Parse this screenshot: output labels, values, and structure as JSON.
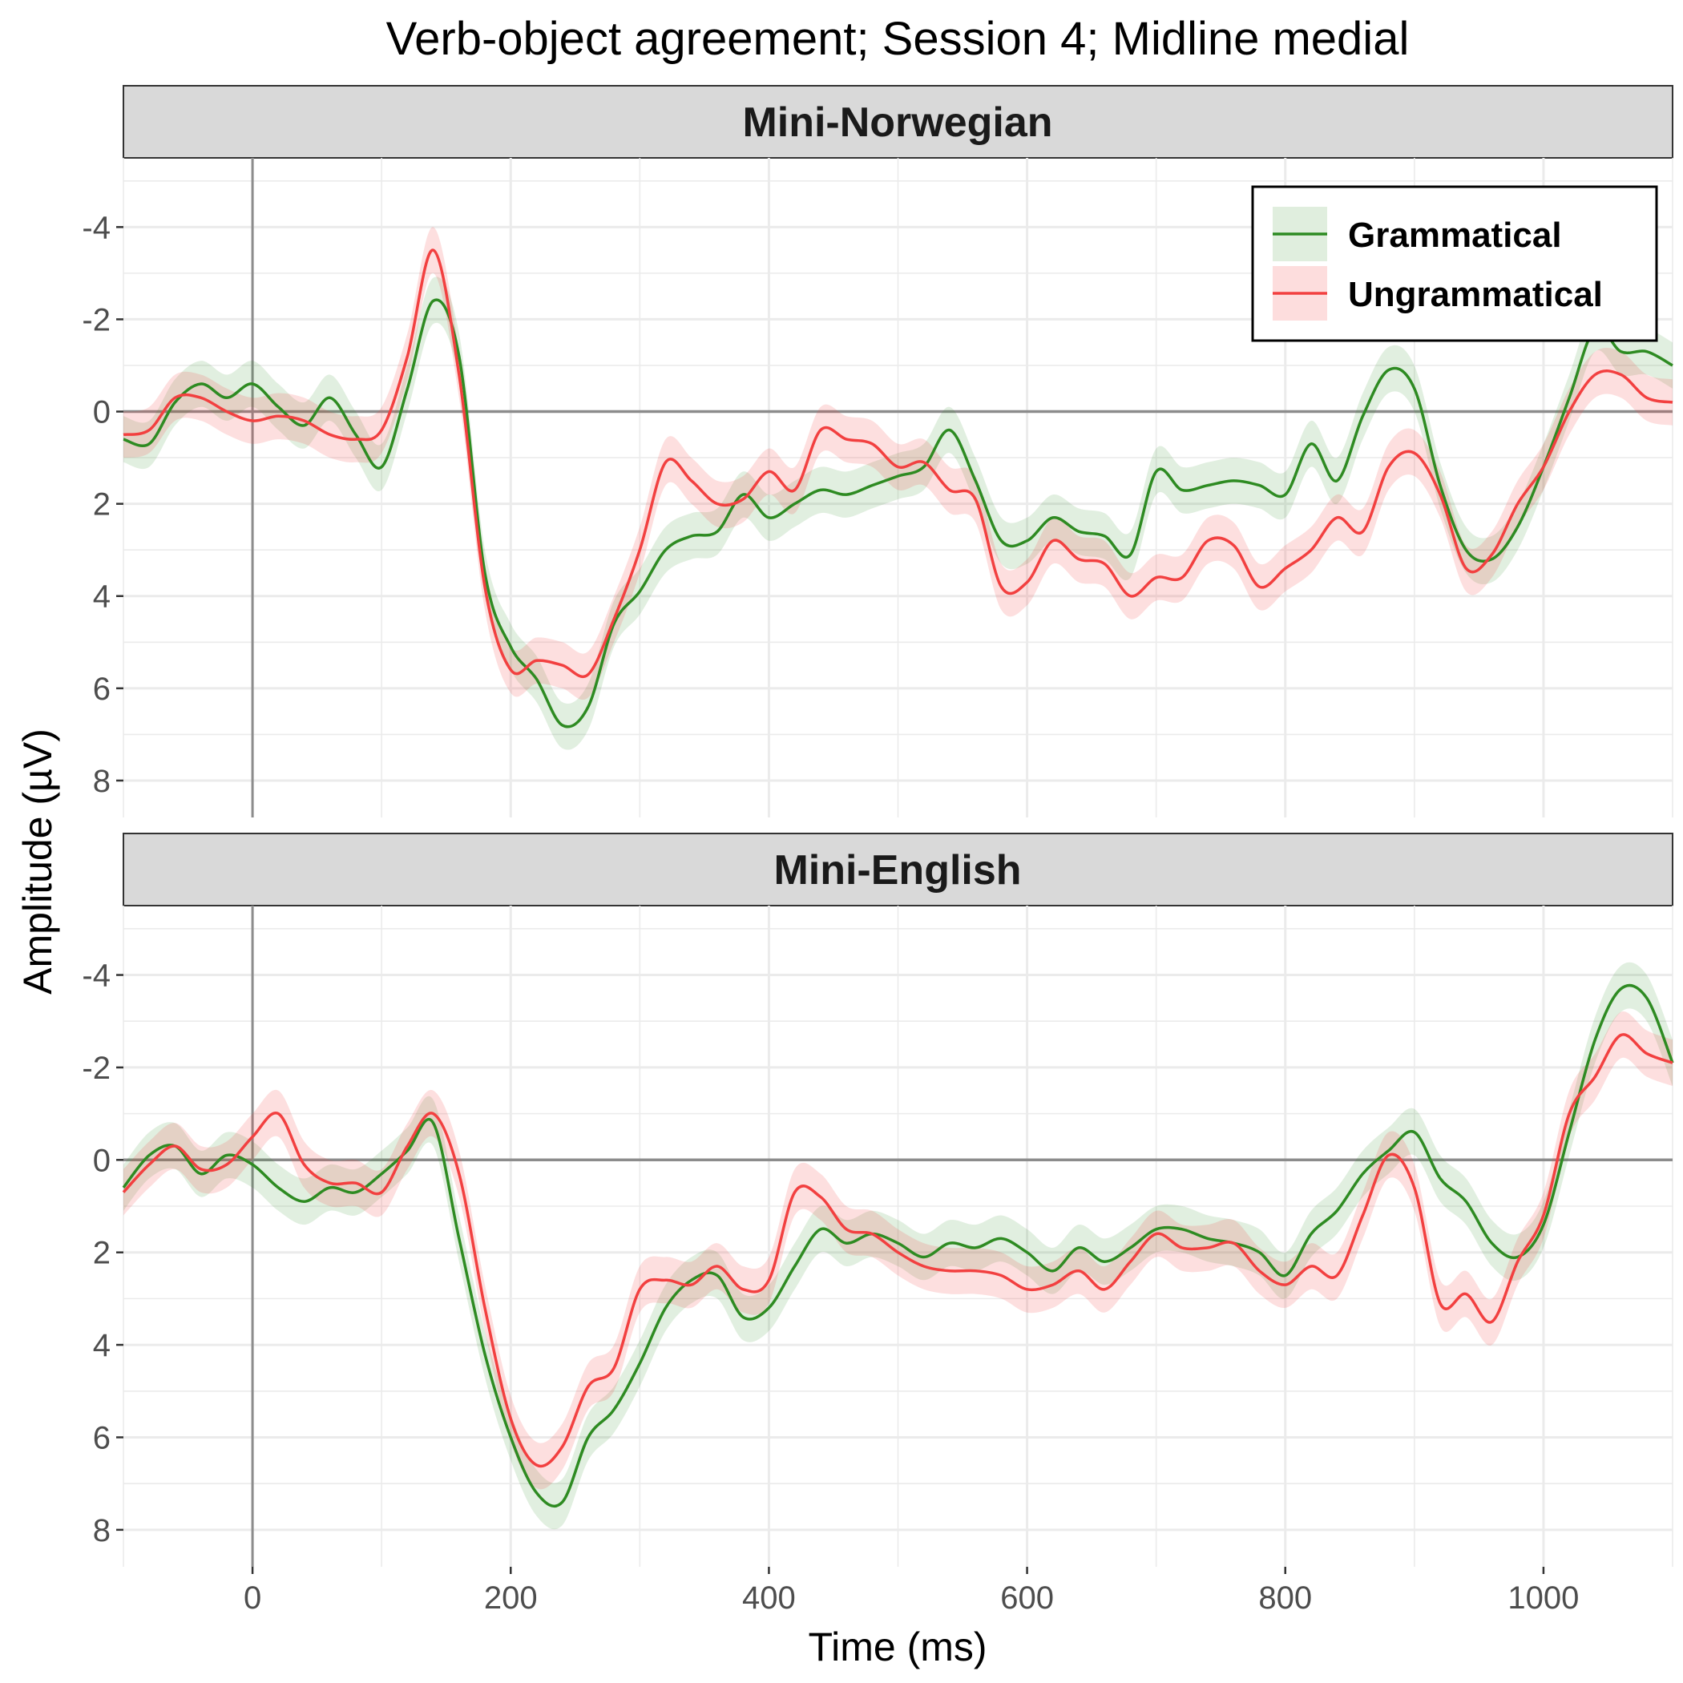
{
  "chart_data": {
    "type": "line",
    "title": "Verb-object agreement; Session 4; Midline medial",
    "xlabel": "Time (ms)",
    "ylabel": "Amplitude (µV)",
    "xlim": [
      -100,
      1100
    ],
    "ylim": [
      -5.5,
      8.8
    ],
    "y_reversed": true,
    "xticks": [
      0,
      200,
      400,
      600,
      800,
      1000
    ],
    "yticks": [
      -4,
      -2,
      0,
      2,
      4,
      6,
      8
    ],
    "ytick_labels": [
      "-4",
      "-2",
      "0",
      "2",
      "4",
      "6",
      "8"
    ],
    "grid": true,
    "legend_position": "top-right",
    "legend": [
      {
        "label": "Grammatical",
        "color": "#2e8b22"
      },
      {
        "label": "Ungrammatical",
        "color": "#f24040"
      }
    ],
    "x": [
      -100,
      -80,
      -60,
      -40,
      -20,
      0,
      20,
      40,
      60,
      80,
      100,
      120,
      140,
      160,
      180,
      200,
      220,
      240,
      260,
      280,
      300,
      320,
      340,
      360,
      380,
      400,
      420,
      440,
      460,
      480,
      500,
      520,
      540,
      560,
      580,
      600,
      620,
      640,
      660,
      680,
      700,
      720,
      740,
      760,
      780,
      800,
      820,
      840,
      860,
      880,
      900,
      920,
      940,
      960,
      980,
      1000,
      1020,
      1040,
      1060,
      1080,
      1100
    ],
    "panels": [
      {
        "label": "Mini-Norwegian",
        "series": [
          {
            "name": "Grammatical",
            "color": "#2e8b22",
            "ci": 0.5,
            "values": [
              0.6,
              0.7,
              -0.2,
              -0.6,
              -0.3,
              -0.6,
              -0.1,
              0.3,
              -0.3,
              0.5,
              1.2,
              -0.5,
              -2.4,
              -1.2,
              3.5,
              5.1,
              5.8,
              6.8,
              6.4,
              4.6,
              3.9,
              3.0,
              2.7,
              2.6,
              1.8,
              2.3,
              2.0,
              1.7,
              1.8,
              1.6,
              1.4,
              1.2,
              0.4,
              1.5,
              2.8,
              2.8,
              2.3,
              2.6,
              2.7,
              3.1,
              1.3,
              1.7,
              1.6,
              1.5,
              1.6,
              1.8,
              0.7,
              1.5,
              0.1,
              -0.9,
              -0.5,
              1.6,
              3.0,
              3.2,
              2.5,
              1.2,
              -0.3,
              -1.8,
              -1.3,
              -1.3,
              -1.0
            ]
          },
          {
            "name": "Ungrammatical",
            "color": "#f24040",
            "ci": 0.5,
            "values": [
              0.5,
              0.4,
              -0.3,
              -0.3,
              0.0,
              0.2,
              0.1,
              0.2,
              0.5,
              0.6,
              0.4,
              -1.2,
              -3.5,
              -0.8,
              3.8,
              5.6,
              5.4,
              5.5,
              5.7,
              4.5,
              3.0,
              1.1,
              1.5,
              2.0,
              1.9,
              1.3,
              1.7,
              0.4,
              0.6,
              0.7,
              1.2,
              1.1,
              1.7,
              1.9,
              3.8,
              3.7,
              2.8,
              3.2,
              3.3,
              4.0,
              3.6,
              3.6,
              2.8,
              2.9,
              3.8,
              3.4,
              3.0,
              2.3,
              2.6,
              1.2,
              0.9,
              1.8,
              3.4,
              3.1,
              2.0,
              1.2,
              0.0,
              -0.8,
              -0.8,
              -0.3,
              -0.2
            ]
          }
        ]
      },
      {
        "label": "Mini-English",
        "series": [
          {
            "name": "Grammatical",
            "color": "#2e8b22",
            "ci": 0.5,
            "values": [
              0.6,
              -0.1,
              -0.3,
              0.3,
              -0.1,
              0.1,
              0.6,
              0.9,
              0.6,
              0.7,
              0.3,
              -0.2,
              -0.8,
              1.7,
              4.2,
              6.0,
              7.2,
              7.4,
              6.0,
              5.4,
              4.4,
              3.2,
              2.6,
              2.5,
              3.4,
              3.2,
              2.3,
              1.5,
              1.8,
              1.6,
              1.8,
              2.1,
              1.8,
              1.9,
              1.7,
              2.0,
              2.4,
              1.9,
              2.2,
              1.9,
              1.5,
              1.5,
              1.7,
              1.8,
              2.0,
              2.5,
              1.6,
              1.1,
              0.3,
              -0.2,
              -0.6,
              0.4,
              0.9,
              1.8,
              2.1,
              1.4,
              -0.6,
              -2.6,
              -3.7,
              -3.5,
              -2.1
            ]
          },
          {
            "name": "Ungrammatical",
            "color": "#f24040",
            "ci": 0.5,
            "values": [
              0.7,
              0.1,
              -0.3,
              0.2,
              0.1,
              -0.5,
              -1.0,
              0.1,
              0.5,
              0.5,
              0.7,
              -0.3,
              -1.0,
              0.3,
              3.2,
              5.6,
              6.6,
              6.2,
              4.9,
              4.5,
              2.8,
              2.6,
              2.7,
              2.3,
              2.8,
              2.6,
              0.7,
              0.8,
              1.5,
              1.6,
              2.0,
              2.3,
              2.4,
              2.4,
              2.5,
              2.8,
              2.7,
              2.4,
              2.8,
              2.2,
              1.6,
              1.9,
              1.9,
              1.8,
              2.4,
              2.7,
              2.3,
              2.5,
              1.2,
              -0.1,
              0.6,
              3.1,
              2.9,
              3.5,
              2.2,
              1.2,
              -1.0,
              -1.8,
              -2.7,
              -2.3,
              -2.1
            ]
          }
        ]
      }
    ]
  }
}
